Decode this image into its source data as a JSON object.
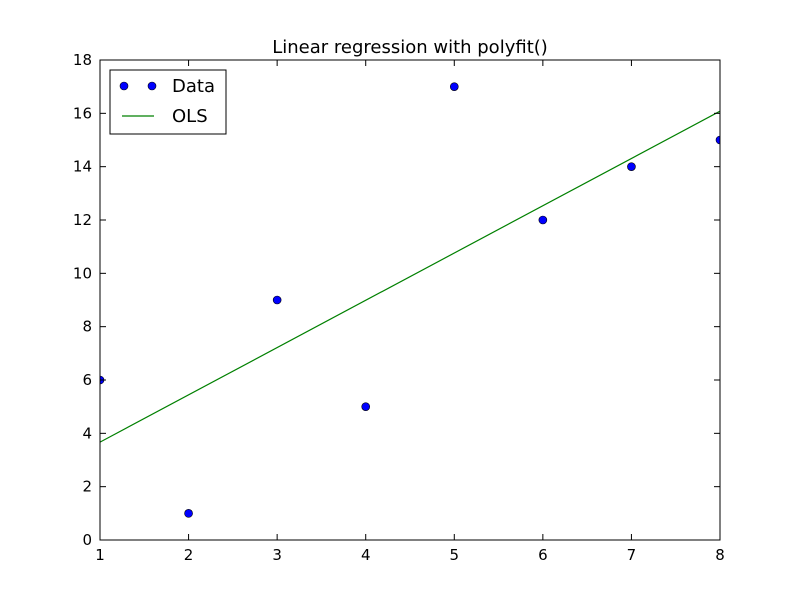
{
  "chart_data": {
    "type": "scatter",
    "title": "Linear regression with polyfit()",
    "xlabel": "",
    "ylabel": "",
    "xlim": [
      1,
      8
    ],
    "ylim": [
      0,
      18
    ],
    "xticks": [
      1,
      2,
      3,
      4,
      5,
      6,
      7,
      8
    ],
    "yticks": [
      0,
      2,
      4,
      6,
      8,
      10,
      12,
      14,
      16,
      18
    ],
    "grid": false,
    "legend_position": "top-left",
    "series": [
      {
        "name": "Data",
        "kind": "markers",
        "color": "#0000ff",
        "x": [
          1,
          2,
          3,
          4,
          5,
          6,
          7,
          8
        ],
        "y": [
          6,
          1,
          9,
          5,
          17,
          12,
          14,
          15
        ]
      },
      {
        "name": "OLS",
        "kind": "line",
        "color": "#008000",
        "x": [
          1,
          8
        ],
        "y": [
          3.67,
          16.08
        ]
      }
    ]
  }
}
